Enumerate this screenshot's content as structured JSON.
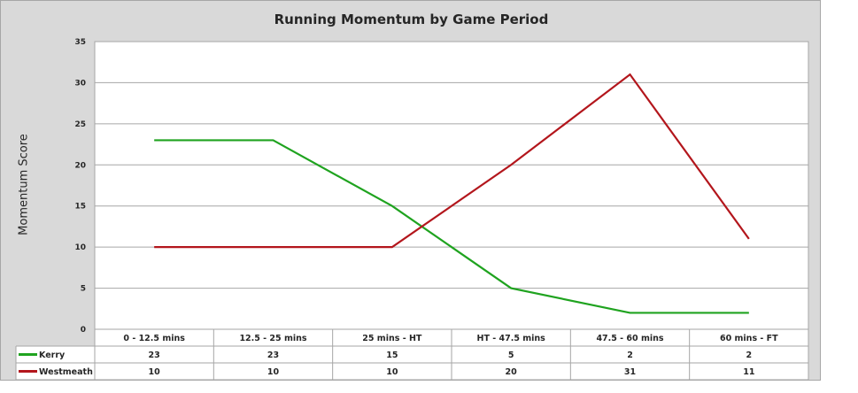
{
  "chart_data": {
    "type": "line",
    "title": "Running Momentum by Game Period",
    "ylabel": "Momentum Score",
    "xlabel": "",
    "ylim": [
      0,
      35
    ],
    "yticks": [
      0,
      5,
      10,
      15,
      20,
      25,
      30,
      35
    ],
    "grid": true,
    "legend": "data-table",
    "categories": [
      "0 - 12.5 mins",
      "12.5 - 25 mins",
      "25 mins -  HT",
      "HT - 47.5 mins",
      "47.5 - 60 mins",
      "60 mins - FT"
    ],
    "series": [
      {
        "name": "Kerry",
        "color": "#1fa31f",
        "values": [
          23,
          23,
          15,
          5,
          2,
          2
        ]
      },
      {
        "name": "Westmeath",
        "color": "#b3161c",
        "values": [
          10,
          10,
          10,
          20,
          31,
          11
        ]
      }
    ]
  }
}
